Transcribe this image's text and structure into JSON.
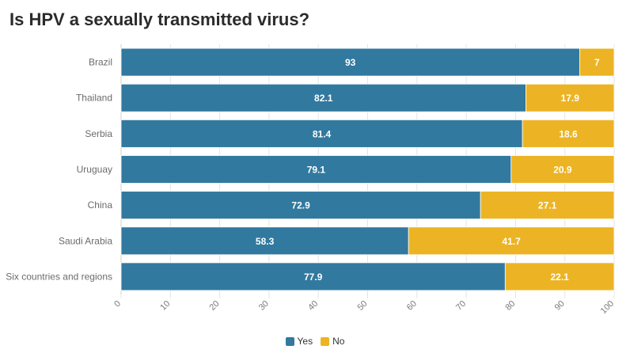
{
  "chart_data": {
    "type": "bar",
    "orientation": "horizontal",
    "stacked": true,
    "title": "Is HPV a sexually transmitted virus?",
    "categories": [
      "Brazil",
      "Thailand",
      "Serbia",
      "Uruguay",
      "China",
      "Saudi Arabia",
      "Six countries and regions"
    ],
    "series": [
      {
        "name": "Yes",
        "color": "#32799f",
        "values": [
          93,
          82.1,
          81.4,
          79.1,
          72.9,
          58.3,
          77.9
        ]
      },
      {
        "name": "No",
        "color": "#ecb424",
        "values": [
          7,
          17.9,
          18.6,
          20.9,
          27.1,
          41.7,
          22.1
        ]
      }
    ],
    "xlim": [
      0,
      100
    ],
    "xticks": [
      0,
      10,
      20,
      30,
      40,
      50,
      60,
      70,
      80,
      90,
      100
    ],
    "legend_position": "bottom-center",
    "grid": true
  }
}
